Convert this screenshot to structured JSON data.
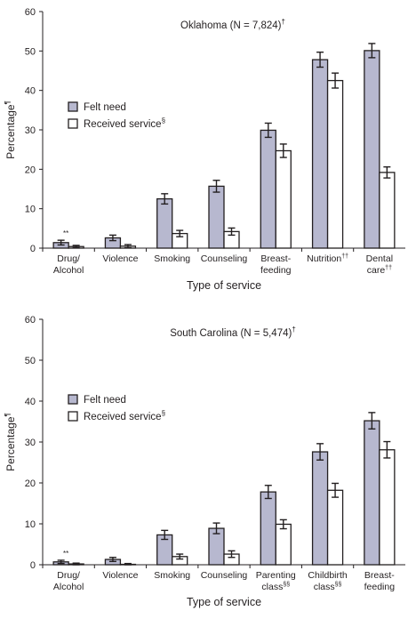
{
  "colors": {
    "felt_need": "#b7b8cf",
    "received_service": "#ffffff",
    "stroke": "#231f20"
  },
  "chart_data": [
    {
      "type": "bar",
      "title": "Oklahoma (N = 7,824)",
      "title_sup": "†",
      "xlabel": "Type of service",
      "ylabel": "Percentage",
      "ylabel_sup": "¶",
      "ylim": [
        0,
        60
      ],
      "yticks": [
        "0",
        "10",
        "20",
        "30",
        "40",
        "50",
        "60"
      ],
      "grid": false,
      "legend_position": "left",
      "categories": [
        {
          "line1": "Drug/",
          "line2": "Alcohol",
          "sup": "",
          "note": "**"
        },
        {
          "line1": "Violence",
          "line2": "",
          "sup": "",
          "note": ""
        },
        {
          "line1": "Smoking",
          "line2": "",
          "sup": "",
          "note": ""
        },
        {
          "line1": "Counseling",
          "line2": "",
          "sup": "",
          "note": ""
        },
        {
          "line1": "Breast-",
          "line2": "feeding",
          "sup": "",
          "note": ""
        },
        {
          "line1": "Nutrition",
          "line2": "",
          "sup": "††",
          "note": ""
        },
        {
          "line1": "Dental",
          "line2": "care",
          "sup": "††",
          "note": ""
        }
      ],
      "series": [
        {
          "name": "Felt need",
          "name_sup": "",
          "values": [
            1.4,
            2.6,
            12.5,
            15.7,
            29.9,
            47.8,
            50.1
          ],
          "ci_low": [
            0.8,
            1.9,
            11.2,
            14.2,
            28.1,
            45.9,
            48.3
          ],
          "ci_high": [
            2.0,
            3.3,
            13.8,
            17.2,
            31.7,
            49.7,
            51.9
          ]
        },
        {
          "name": "Received service",
          "name_sup": "§",
          "values": [
            0.4,
            0.5,
            3.7,
            4.2,
            24.7,
            42.5,
            19.2
          ],
          "ci_low": [
            0.1,
            0.1,
            2.9,
            3.3,
            23.0,
            40.6,
            17.8
          ],
          "ci_high": [
            0.7,
            0.9,
            4.5,
            5.1,
            26.4,
            44.4,
            20.6
          ]
        }
      ]
    },
    {
      "type": "bar",
      "title": "South Carolina (N = 5,474)",
      "title_sup": "†",
      "xlabel": "Type of service",
      "ylabel": "Percentage",
      "ylabel_sup": "¶",
      "ylim": [
        0,
        60
      ],
      "yticks": [
        "0",
        "10",
        "20",
        "30",
        "40",
        "50",
        "60"
      ],
      "grid": false,
      "legend_position": "left",
      "categories": [
        {
          "line1": "Drug/",
          "line2": "Alcohol",
          "sup": "",
          "note": "**"
        },
        {
          "line1": "Violence",
          "line2": "",
          "sup": "",
          "note": ""
        },
        {
          "line1": "Smoking",
          "line2": "",
          "sup": "",
          "note": ""
        },
        {
          "line1": "Counseling",
          "line2": "",
          "sup": "",
          "note": ""
        },
        {
          "line1": "Parenting",
          "line2": "class",
          "sup": "§§",
          "note": ""
        },
        {
          "line1": "Childbirth",
          "line2": "class",
          "sup": "§§",
          "note": ""
        },
        {
          "line1": "Breast-",
          "line2": "feeding",
          "sup": "",
          "note": ""
        }
      ],
      "series": [
        {
          "name": "Felt need",
          "name_sup": "",
          "values": [
            0.7,
            1.3,
            7.3,
            8.9,
            17.8,
            27.6,
            35.2
          ],
          "ci_low": [
            0.3,
            0.8,
            6.2,
            7.6,
            16.2,
            25.6,
            33.2
          ],
          "ci_high": [
            1.1,
            1.8,
            8.4,
            10.2,
            19.4,
            29.6,
            37.2
          ]
        },
        {
          "name": "Received service",
          "name_sup": "§",
          "values": [
            0.2,
            0.1,
            2.0,
            2.6,
            9.9,
            18.2,
            28.1
          ],
          "ci_low": [
            0.0,
            0.0,
            1.4,
            1.8,
            8.8,
            16.5,
            26.1
          ],
          "ci_high": [
            0.4,
            0.3,
            2.6,
            3.4,
            11.0,
            19.9,
            30.1
          ]
        }
      ]
    }
  ]
}
